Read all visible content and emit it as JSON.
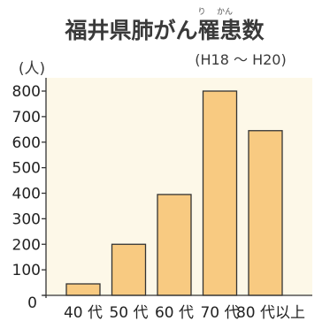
{
  "chart_data": {
    "type": "bar",
    "title": "福井県肺がん罹患数",
    "title_ruby": [
      "り",
      "かん"
    ],
    "subtitle": "(H18 ～ H20)",
    "ylabel": "(人)",
    "xlabel": "",
    "categories": [
      "40 代",
      "50 代",
      "60 代",
      "70 代",
      "80 代以上"
    ],
    "values": [
      45,
      200,
      395,
      800,
      645
    ],
    "ylim": [
      0,
      800
    ],
    "yticks": [
      0,
      100,
      200,
      300,
      400,
      500,
      600,
      700,
      800
    ],
    "grid": false,
    "colors": {
      "bar_fill": "#f8ca81",
      "bar_stroke": "#333333",
      "plot_bg": "#fdf8e8",
      "axis": "#333333"
    }
  }
}
